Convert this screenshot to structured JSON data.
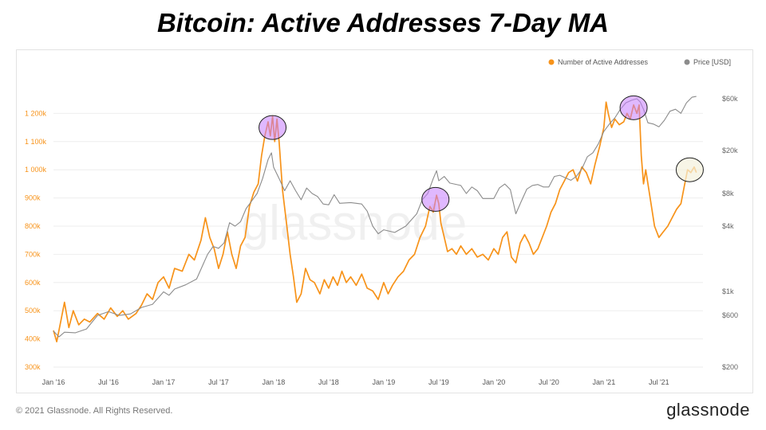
{
  "title": "Bitcoin: Active Addresses 7-Day MA",
  "footer": {
    "copyright": "© 2021 Glassnode. All Rights Reserved.",
    "brand": "glassnode"
  },
  "watermark": "glassnode",
  "colors": {
    "active": "#f7931a",
    "price": "#8c8c8c",
    "highlight": "#c77dff",
    "highlight_last": "#f3f1dc",
    "axis_left": "#f7931a",
    "axis_right": "#666666",
    "grid": "#eeeeee"
  },
  "chart_data": {
    "type": "line",
    "legend_position": "top-right",
    "grid": true,
    "x_ticks": [
      {
        "label": "Jan '16",
        "t": 2016.0
      },
      {
        "label": "Jul '16",
        "t": 2016.5
      },
      {
        "label": "Jan '17",
        "t": 2017.0
      },
      {
        "label": "Jul '17",
        "t": 2017.5
      },
      {
        "label": "Jan '18",
        "t": 2018.0
      },
      {
        "label": "Jul '18",
        "t": 2018.5
      },
      {
        "label": "Jan '19",
        "t": 2019.0
      },
      {
        "label": "Jul '19",
        "t": 2019.5
      },
      {
        "label": "Jan '20",
        "t": 2020.0
      },
      {
        "label": "Jul '20",
        "t": 2020.5
      },
      {
        "label": "Jan '21",
        "t": 2021.0
      },
      {
        "label": "Jul '21",
        "t": 2021.5
      }
    ],
    "xlim": [
      2016.0,
      2021.9
    ],
    "y_left": {
      "range": [
        300000,
        1300000
      ],
      "ticks": [
        {
          "value": 300000,
          "label": "300k"
        },
        {
          "value": 400000,
          "label": "400k"
        },
        {
          "value": 500000,
          "label": "500k"
        },
        {
          "value": 600000,
          "label": "600k"
        },
        {
          "value": 700000,
          "label": "700k"
        },
        {
          "value": 800000,
          "label": "800k"
        },
        {
          "value": 900000,
          "label": "900k"
        },
        {
          "value": 1000000,
          "label": "1 000k"
        },
        {
          "value": 1100000,
          "label": "1 100k"
        },
        {
          "value": 1200000,
          "label": "1 200k"
        }
      ]
    },
    "y_right": {
      "scale": "log",
      "range": [
        200,
        80000
      ],
      "ticks": [
        {
          "value": 200,
          "label": "$200"
        },
        {
          "value": 600,
          "label": "$600"
        },
        {
          "value": 1000,
          "label": "$1k"
        },
        {
          "value": 4000,
          "label": "$4k"
        },
        {
          "value": 8000,
          "label": "$8k"
        },
        {
          "value": 20000,
          "label": "$20k"
        },
        {
          "value": 60000,
          "label": "$60k"
        }
      ]
    },
    "series": [
      {
        "name": "Number of Active Addresses",
        "axis": "left",
        "points": [
          [
            2016.0,
            430000
          ],
          [
            2016.03,
            390000
          ],
          [
            2016.07,
            470000
          ],
          [
            2016.1,
            530000
          ],
          [
            2016.14,
            440000
          ],
          [
            2016.18,
            500000
          ],
          [
            2016.23,
            450000
          ],
          [
            2016.28,
            470000
          ],
          [
            2016.33,
            460000
          ],
          [
            2016.4,
            490000
          ],
          [
            2016.46,
            470000
          ],
          [
            2016.52,
            510000
          ],
          [
            2016.58,
            480000
          ],
          [
            2016.63,
            500000
          ],
          [
            2016.68,
            470000
          ],
          [
            2016.75,
            490000
          ],
          [
            2016.8,
            520000
          ],
          [
            2016.85,
            560000
          ],
          [
            2016.9,
            540000
          ],
          [
            2016.95,
            600000
          ],
          [
            2017.0,
            620000
          ],
          [
            2017.05,
            580000
          ],
          [
            2017.1,
            650000
          ],
          [
            2017.17,
            640000
          ],
          [
            2017.23,
            700000
          ],
          [
            2017.28,
            680000
          ],
          [
            2017.34,
            750000
          ],
          [
            2017.38,
            830000
          ],
          [
            2017.42,
            760000
          ],
          [
            2017.46,
            720000
          ],
          [
            2017.5,
            650000
          ],
          [
            2017.54,
            700000
          ],
          [
            2017.58,
            780000
          ],
          [
            2017.62,
            700000
          ],
          [
            2017.66,
            650000
          ],
          [
            2017.7,
            730000
          ],
          [
            2017.74,
            760000
          ],
          [
            2017.78,
            870000
          ],
          [
            2017.82,
            920000
          ],
          [
            2017.86,
            950000
          ],
          [
            2017.89,
            1050000
          ],
          [
            2017.92,
            1120000
          ],
          [
            2017.95,
            1170000
          ],
          [
            2017.97,
            1120000
          ],
          [
            2017.99,
            1190000
          ],
          [
            2018.01,
            1100000
          ],
          [
            2018.03,
            1180000
          ],
          [
            2018.05,
            1100000
          ],
          [
            2018.08,
            930000
          ],
          [
            2018.12,
            800000
          ],
          [
            2018.15,
            700000
          ],
          [
            2018.18,
            620000
          ],
          [
            2018.21,
            530000
          ],
          [
            2018.25,
            560000
          ],
          [
            2018.29,
            650000
          ],
          [
            2018.33,
            610000
          ],
          [
            2018.37,
            600000
          ],
          [
            2018.42,
            560000
          ],
          [
            2018.46,
            610000
          ],
          [
            2018.5,
            580000
          ],
          [
            2018.54,
            620000
          ],
          [
            2018.58,
            590000
          ],
          [
            2018.62,
            640000
          ],
          [
            2018.66,
            600000
          ],
          [
            2018.7,
            620000
          ],
          [
            2018.75,
            590000
          ],
          [
            2018.8,
            630000
          ],
          [
            2018.85,
            580000
          ],
          [
            2018.9,
            570000
          ],
          [
            2018.95,
            540000
          ],
          [
            2019.0,
            600000
          ],
          [
            2019.04,
            560000
          ],
          [
            2019.08,
            590000
          ],
          [
            2019.13,
            620000
          ],
          [
            2019.18,
            640000
          ],
          [
            2019.23,
            680000
          ],
          [
            2019.28,
            700000
          ],
          [
            2019.33,
            760000
          ],
          [
            2019.38,
            800000
          ],
          [
            2019.42,
            870000
          ],
          [
            2019.45,
            850000
          ],
          [
            2019.48,
            910000
          ],
          [
            2019.5,
            880000
          ],
          [
            2019.52,
            810000
          ],
          [
            2019.55,
            760000
          ],
          [
            2019.58,
            710000
          ],
          [
            2019.62,
            720000
          ],
          [
            2019.66,
            700000
          ],
          [
            2019.7,
            730000
          ],
          [
            2019.75,
            700000
          ],
          [
            2019.8,
            720000
          ],
          [
            2019.85,
            690000
          ],
          [
            2019.9,
            700000
          ],
          [
            2019.95,
            680000
          ],
          [
            2020.0,
            720000
          ],
          [
            2020.04,
            700000
          ],
          [
            2020.08,
            760000
          ],
          [
            2020.12,
            780000
          ],
          [
            2020.16,
            690000
          ],
          [
            2020.2,
            670000
          ],
          [
            2020.24,
            740000
          ],
          [
            2020.28,
            770000
          ],
          [
            2020.32,
            740000
          ],
          [
            2020.36,
            700000
          ],
          [
            2020.4,
            720000
          ],
          [
            2020.44,
            760000
          ],
          [
            2020.48,
            800000
          ],
          [
            2020.52,
            850000
          ],
          [
            2020.56,
            880000
          ],
          [
            2020.6,
            930000
          ],
          [
            2020.64,
            960000
          ],
          [
            2020.68,
            990000
          ],
          [
            2020.72,
            1000000
          ],
          [
            2020.76,
            960000
          ],
          [
            2020.8,
            1010000
          ],
          [
            2020.84,
            990000
          ],
          [
            2020.88,
            950000
          ],
          [
            2020.92,
            1020000
          ],
          [
            2020.96,
            1080000
          ],
          [
            2021.0,
            1150000
          ],
          [
            2021.02,
            1240000
          ],
          [
            2021.04,
            1200000
          ],
          [
            2021.07,
            1150000
          ],
          [
            2021.1,
            1180000
          ],
          [
            2021.14,
            1160000
          ],
          [
            2021.18,
            1170000
          ],
          [
            2021.21,
            1200000
          ],
          [
            2021.24,
            1180000
          ],
          [
            2021.27,
            1230000
          ],
          [
            2021.3,
            1200000
          ],
          [
            2021.32,
            1230000
          ],
          [
            2021.34,
            1050000
          ],
          [
            2021.36,
            950000
          ],
          [
            2021.38,
            1000000
          ],
          [
            2021.42,
            900000
          ],
          [
            2021.46,
            800000
          ],
          [
            2021.5,
            760000
          ],
          [
            2021.54,
            780000
          ],
          [
            2021.58,
            800000
          ],
          [
            2021.62,
            830000
          ],
          [
            2021.66,
            860000
          ],
          [
            2021.7,
            880000
          ],
          [
            2021.73,
            940000
          ],
          [
            2021.76,
            1000000
          ],
          [
            2021.79,
            990000
          ],
          [
            2021.82,
            1010000
          ],
          [
            2021.84,
            990000
          ]
        ]
      },
      {
        "name": "Price [USD]",
        "axis": "right",
        "points": [
          [
            2016.0,
            430
          ],
          [
            2016.05,
            380
          ],
          [
            2016.1,
            420
          ],
          [
            2016.2,
            415
          ],
          [
            2016.3,
            450
          ],
          [
            2016.4,
            600
          ],
          [
            2016.5,
            650
          ],
          [
            2016.6,
            600
          ],
          [
            2016.7,
            620
          ],
          [
            2016.8,
            710
          ],
          [
            2016.9,
            760
          ],
          [
            2017.0,
            990
          ],
          [
            2017.05,
            920
          ],
          [
            2017.1,
            1050
          ],
          [
            2017.2,
            1150
          ],
          [
            2017.3,
            1300
          ],
          [
            2017.4,
            2200
          ],
          [
            2017.45,
            2600
          ],
          [
            2017.5,
            2500
          ],
          [
            2017.55,
            2800
          ],
          [
            2017.6,
            4300
          ],
          [
            2017.65,
            4000
          ],
          [
            2017.7,
            4400
          ],
          [
            2017.75,
            5800
          ],
          [
            2017.8,
            6800
          ],
          [
            2017.85,
            8000
          ],
          [
            2017.9,
            11000
          ],
          [
            2017.95,
            16500
          ],
          [
            2017.98,
            19000
          ],
          [
            2018.0,
            14000
          ],
          [
            2018.05,
            11000
          ],
          [
            2018.1,
            8500
          ],
          [
            2018.15,
            10500
          ],
          [
            2018.2,
            8500
          ],
          [
            2018.25,
            7000
          ],
          [
            2018.3,
            9000
          ],
          [
            2018.35,
            8000
          ],
          [
            2018.4,
            7500
          ],
          [
            2018.45,
            6400
          ],
          [
            2018.5,
            6300
          ],
          [
            2018.55,
            7800
          ],
          [
            2018.6,
            6500
          ],
          [
            2018.7,
            6600
          ],
          [
            2018.8,
            6400
          ],
          [
            2018.85,
            5500
          ],
          [
            2018.9,
            4000
          ],
          [
            2018.95,
            3400
          ],
          [
            2019.0,
            3700
          ],
          [
            2019.1,
            3500
          ],
          [
            2019.2,
            4000
          ],
          [
            2019.3,
            5200
          ],
          [
            2019.35,
            7000
          ],
          [
            2019.4,
            8000
          ],
          [
            2019.45,
            11000
          ],
          [
            2019.48,
            13000
          ],
          [
            2019.5,
            10500
          ],
          [
            2019.55,
            11500
          ],
          [
            2019.6,
            10000
          ],
          [
            2019.7,
            9500
          ],
          [
            2019.75,
            8000
          ],
          [
            2019.8,
            9200
          ],
          [
            2019.85,
            8500
          ],
          [
            2019.9,
            7200
          ],
          [
            2019.95,
            7200
          ],
          [
            2020.0,
            7200
          ],
          [
            2020.05,
            9000
          ],
          [
            2020.1,
            9800
          ],
          [
            2020.15,
            8700
          ],
          [
            2020.2,
            5200
          ],
          [
            2020.25,
            6800
          ],
          [
            2020.3,
            8800
          ],
          [
            2020.35,
            9500
          ],
          [
            2020.4,
            9700
          ],
          [
            2020.45,
            9200
          ],
          [
            2020.5,
            9200
          ],
          [
            2020.55,
            11500
          ],
          [
            2020.6,
            11800
          ],
          [
            2020.7,
            10600
          ],
          [
            2020.75,
            11500
          ],
          [
            2020.8,
            13500
          ],
          [
            2020.85,
            17500
          ],
          [
            2020.9,
            19000
          ],
          [
            2020.95,
            23000
          ],
          [
            2021.0,
            30000
          ],
          [
            2021.05,
            35000
          ],
          [
            2021.1,
            40000
          ],
          [
            2021.15,
            48000
          ],
          [
            2021.2,
            55000
          ],
          [
            2021.25,
            58000
          ],
          [
            2021.3,
            60000
          ],
          [
            2021.33,
            56000
          ],
          [
            2021.36,
            48000
          ],
          [
            2021.4,
            36000
          ],
          [
            2021.45,
            35000
          ],
          [
            2021.5,
            33000
          ],
          [
            2021.55,
            38000
          ],
          [
            2021.6,
            46000
          ],
          [
            2021.65,
            48000
          ],
          [
            2021.7,
            44000
          ],
          [
            2021.75,
            55000
          ],
          [
            2021.8,
            62000
          ],
          [
            2021.84,
            63000
          ]
        ]
      }
    ],
    "highlights": [
      {
        "t": 2017.99,
        "value": 1150000
      },
      {
        "t": 2019.47,
        "value": 895000
      },
      {
        "t": 2021.27,
        "value": 1220000
      },
      {
        "t": 2021.78,
        "value": 1000000
      }
    ]
  }
}
